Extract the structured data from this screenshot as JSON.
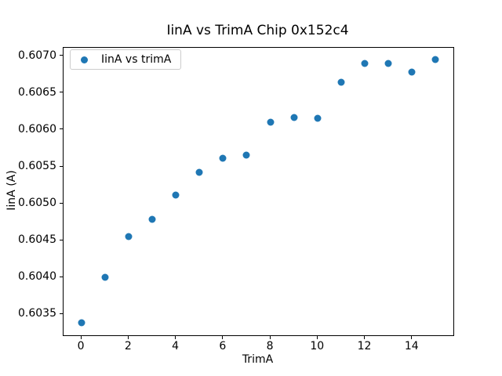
{
  "chart_data": {
    "type": "scatter",
    "title": "IinA vs TrimA Chip 0x152c4",
    "xlabel": "TrimA",
    "ylabel": "IinA (A)",
    "legend": [
      "IinA vs trimA"
    ],
    "legend_position": "upper left",
    "grid": false,
    "marker_color": "#1f77b4",
    "axis_color": "#000000",
    "xlim": [
      -0.75,
      15.75
    ],
    "ylim": [
      0.60321,
      0.60711
    ],
    "xticks": [
      0,
      2,
      4,
      6,
      8,
      10,
      12,
      14
    ],
    "xtick_labels": [
      "0",
      "2",
      "4",
      "6",
      "8",
      "10",
      "12",
      "14"
    ],
    "yticks": [
      0.6035,
      0.604,
      0.6045,
      0.605,
      0.6055,
      0.606,
      0.6065,
      0.607
    ],
    "ytick_labels": [
      "0.6035",
      "0.6040",
      "0.6045",
      "0.6050",
      "0.6055",
      "0.6060",
      "0.6065",
      "0.6070"
    ],
    "x": [
      0,
      1,
      2,
      3,
      4,
      5,
      6,
      7,
      8,
      9,
      10,
      11,
      12,
      13,
      14,
      15
    ],
    "y": [
      0.60338,
      0.604,
      0.60455,
      0.60478,
      0.60511,
      0.60542,
      0.60561,
      0.60565,
      0.6061,
      0.60616,
      0.60615,
      0.60664,
      0.6069,
      0.6069,
      0.60678,
      0.60695
    ]
  }
}
